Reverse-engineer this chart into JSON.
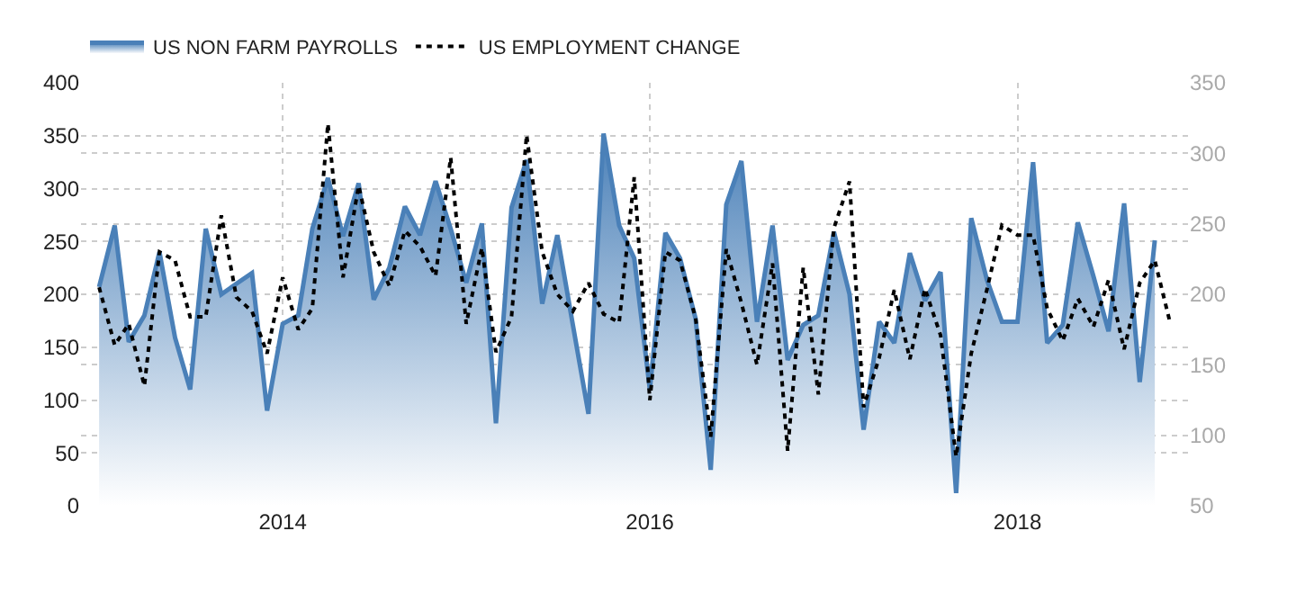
{
  "chart_data": {
    "type": "line",
    "x": [
      "2013-01",
      "2013-02",
      "2013-03",
      "2013-04",
      "2013-05",
      "2013-06",
      "2013-07",
      "2013-08",
      "2013-09",
      "2013-10",
      "2013-11",
      "2013-12",
      "2014-01",
      "2014-02",
      "2014-03",
      "2014-04",
      "2014-05",
      "2014-06",
      "2014-07",
      "2014-08",
      "2014-09",
      "2014-10",
      "2014-11",
      "2014-12",
      "2015-01",
      "2015-02",
      "2015-03",
      "2015-04",
      "2015-05",
      "2015-06",
      "2015-07",
      "2015-08",
      "2015-09",
      "2015-10",
      "2015-11",
      "2015-12",
      "2016-01",
      "2016-02",
      "2016-03",
      "2016-04",
      "2016-05",
      "2016-06",
      "2016-07",
      "2016-08",
      "2016-09",
      "2016-10",
      "2016-11",
      "2016-12",
      "2017-01",
      "2017-02",
      "2017-03",
      "2017-04",
      "2017-05",
      "2017-06",
      "2017-07",
      "2017-08",
      "2017-09",
      "2017-10",
      "2017-11",
      "2017-12",
      "2018-01",
      "2018-02",
      "2018-03",
      "2018-04",
      "2018-05",
      "2018-06",
      "2018-07",
      "2018-08",
      "2018-09",
      "2018-10",
      "2018-11"
    ],
    "series": [
      {
        "name": "US NON FARM PAYROLLS",
        "type": "area",
        "color": "#4a80b8",
        "values": [
          207,
          265,
          155,
          180,
          240,
          159,
          110,
          262,
          200,
          210,
          220,
          90,
          172,
          180,
          262,
          310,
          255,
          305,
          195,
          225,
          283,
          256,
          307,
          262,
          211,
          267,
          78,
          282,
          327,
          191,
          256,
          171,
          87,
          352,
          265,
          234,
          110,
          258,
          234,
          177,
          34,
          285,
          326,
          174,
          265,
          138,
          171,
          180,
          259,
          200,
          72,
          174,
          154,
          239,
          194,
          221,
          12,
          272,
          214,
          174,
          174,
          325,
          154,
          171,
          268,
          217,
          165,
          286,
          117,
          251,
          null
        ]
      },
      {
        "name": "US EMPLOYMENT CHANGE",
        "axis": "y2",
        "color": "#000000",
        "line_style": "dotted",
        "values": [
          205,
          164,
          179,
          135,
          230,
          224,
          184,
          184,
          256,
          198,
          188,
          158,
          212,
          175,
          190,
          321,
          212,
          277,
          230,
          206,
          245,
          234,
          213,
          297,
          179,
          233,
          159,
          184,
          313,
          230,
          200,
          188,
          208,
          186,
          180,
          283,
          125,
          230,
          224,
          183,
          99,
          232,
          194,
          150,
          222,
          89,
          219,
          129,
          247,
          280,
          120,
          155,
          203,
          154,
          204,
          171,
          85,
          158,
          203,
          249,
          242,
          242,
          190,
          167,
          197,
          177,
          210,
          161,
          208,
          224,
          179
        ]
      }
    ],
    "xlim": [
      "2012-11-26",
      "2018-12-06"
    ],
    "xticks": [
      {
        "value": "2014-01-01",
        "label": "2014"
      },
      {
        "value": "2016-01-01",
        "label": "2016"
      },
      {
        "value": "2018-01-01",
        "label": "2018"
      }
    ],
    "ylim": [
      0,
      400
    ],
    "yticks": [
      0,
      50,
      100,
      150,
      200,
      250,
      300,
      350,
      400
    ],
    "y2lim": [
      50,
      350
    ],
    "y2ticks": [
      50,
      100,
      150,
      200,
      250,
      300,
      350
    ],
    "grid": true,
    "legend": "top left"
  }
}
